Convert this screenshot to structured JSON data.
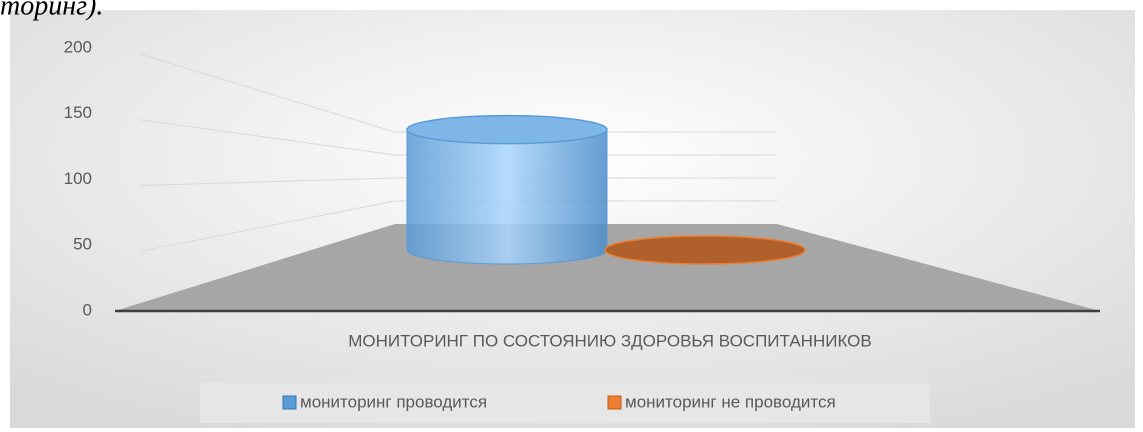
{
  "caption": "торинг).",
  "chart_data": {
    "type": "cylinder3d",
    "categories": [
      "МОНИТОРИНГ ПО СОСТОЯНИЮ ЗДОРОВЬЯ ВОСПИТАННИКОВ"
    ],
    "series": [
      {
        "name": "мониторинг проводится",
        "color": "#5b9bd5",
        "values": [
          140
        ]
      },
      {
        "name": "мониторинг не проводится",
        "color": "#ed7d31",
        "values": [
          0
        ]
      }
    ],
    "ylim": [
      0,
      200
    ],
    "yticks": [
      0,
      50,
      100,
      150,
      200
    ],
    "grid": true,
    "legend": "bottom"
  }
}
